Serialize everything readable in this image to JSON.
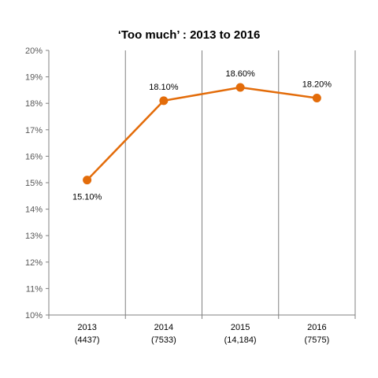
{
  "chart_data": {
    "type": "line",
    "title": "‘Too much’ : 2013 to 2016",
    "xlabel": "",
    "ylabel": "",
    "categories": [
      [
        "2013",
        "(4437)"
      ],
      [
        "2014",
        "(7533)"
      ],
      [
        "2015",
        "(14,184)"
      ],
      [
        "2016",
        "(7575)"
      ]
    ],
    "series": [
      {
        "values": [
          15.1,
          18.1,
          18.6,
          18.2
        ],
        "data_labels": [
          "15.10%",
          "18.10%",
          "18.60%",
          "18.20%"
        ],
        "color": "#E36C0A"
      }
    ],
    "ylim": [
      10,
      20
    ],
    "yticks": [
      "10%",
      "11%",
      "12%",
      "13%",
      "14%",
      "15%",
      "16%",
      "17%",
      "18%",
      "19%",
      "20%"
    ],
    "grid": "vertical",
    "legend": "none"
  }
}
